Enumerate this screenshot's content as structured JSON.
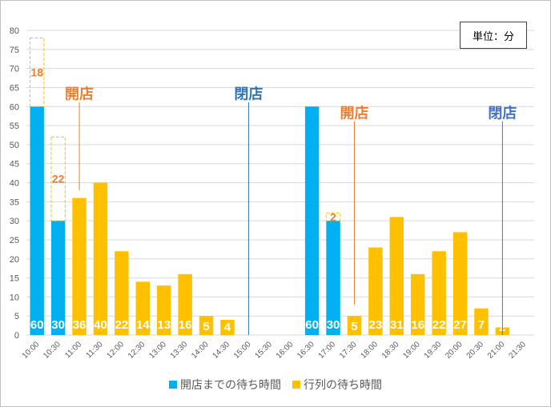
{
  "chart_data": {
    "type": "bar",
    "stacked": true,
    "categories": [
      "10:00",
      "10:30",
      "11:00",
      "11:30",
      "12:00",
      "12:30",
      "13:00",
      "13:30",
      "14:00",
      "14:30",
      "15:00",
      "15:30",
      "16:00",
      "16:30",
      "17:00",
      "17:30",
      "18:00",
      "18:30",
      "19:00",
      "19:30",
      "20:00",
      "20:30",
      "21:00",
      "21:30"
    ],
    "series": [
      {
        "name": "開店までの待ち時間",
        "color": "#00B0F0",
        "values": [
          60,
          30,
          0,
          0,
          0,
          0,
          0,
          0,
          0,
          0,
          0,
          0,
          0,
          60,
          30,
          0,
          0,
          0,
          0,
          0,
          0,
          0,
          0,
          0
        ]
      },
      {
        "name": "行列の待ち時間",
        "color": "#FFC000",
        "values": [
          0,
          0,
          36,
          40,
          22,
          14,
          13,
          16,
          5,
          4,
          0,
          0,
          0,
          0,
          0,
          5,
          23,
          31,
          16,
          22,
          27,
          7,
          2,
          0
        ]
      }
    ],
    "bar_labels": [
      "60",
      "30",
      "36",
      "40",
      "22",
      "14",
      "13",
      "16",
      "5",
      "4",
      "",
      "",
      "",
      "60",
      "30",
      "5",
      "23",
      "31",
      "16",
      "22",
      "27",
      "7",
      "2",
      ""
    ],
    "dashed_boxes": [
      {
        "category": "10:00",
        "from": 60,
        "to": 78,
        "label": "18"
      },
      {
        "category": "10:30",
        "from": 30,
        "to": 52,
        "label": "22"
      },
      {
        "category": "17:00",
        "from": 30,
        "to": 32,
        "label": "2"
      }
    ],
    "annotations": [
      {
        "text": "開店",
        "color": "#ED7D31",
        "category": "11:00",
        "line_to": 38,
        "text_y": 62
      },
      {
        "text": "閉店",
        "color": "#2E75B6",
        "category": "15:00",
        "line_to": 0,
        "text_y": 62
      },
      {
        "text": "開店",
        "color": "#ED7D31",
        "category": "17:30",
        "line_to": 8,
        "text_y": 57
      },
      {
        "text": "閉店",
        "color": "#4472C4",
        "category": "21:00",
        "line_to": 0,
        "text_y": 57
      }
    ],
    "ylim": [
      0,
      80
    ],
    "yticks": [
      0,
      5,
      10,
      15,
      20,
      25,
      30,
      35,
      40,
      45,
      50,
      55,
      60,
      65,
      70,
      75,
      80
    ],
    "grid": true,
    "unit_label": "単位：分",
    "legend_position": "bottom"
  }
}
